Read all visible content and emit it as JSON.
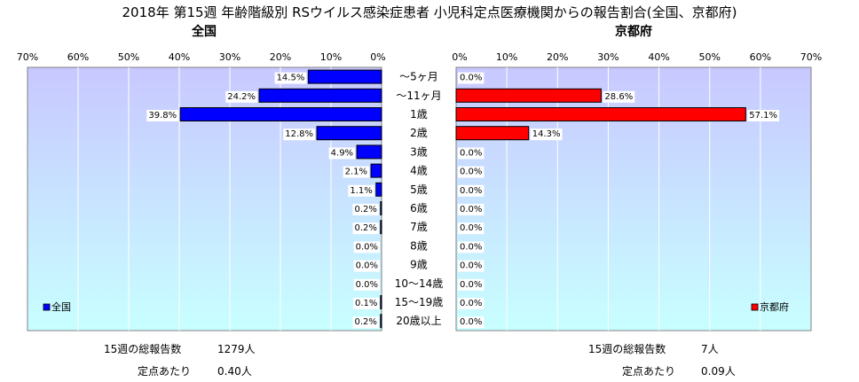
{
  "title": "2018年 第15週 年齢階級別 RSウイルス感染症患者 小児科定点医療機関からの報告割合(全国、京都府)",
  "chart_data": {
    "type": "bar",
    "orientation": "horizontal",
    "categories": [
      "～5ヶ月",
      "～11ヶ月",
      "1歳",
      "2歳",
      "3歳",
      "4歳",
      "5歳",
      "6歳",
      "7歳",
      "8歳",
      "9歳",
      "10～14歳",
      "15～19歳",
      "20歳以上"
    ],
    "xlim": [
      0,
      70
    ],
    "xticks": [
      "70%",
      "60%",
      "50%",
      "40%",
      "30%",
      "20%",
      "10%",
      "0%"
    ],
    "xticks_right": [
      "0%",
      "10%",
      "20%",
      "30%",
      "40%",
      "50%",
      "60%",
      "70%"
    ],
    "grid": true,
    "series": [
      {
        "name": "全国",
        "panel_title": "全国",
        "color": "#0000ff",
        "legend_position": "bottom-left",
        "values": [
          14.5,
          24.2,
          39.8,
          12.8,
          4.9,
          2.1,
          1.1,
          0.2,
          0.2,
          0.0,
          0.0,
          0.0,
          0.1,
          0.2
        ],
        "labels": [
          "14.5%",
          "24.2%",
          "39.8%",
          "12.8%",
          "4.9%",
          "2.1%",
          "1.1%",
          "0.2%",
          "0.2%",
          "0.0%",
          "0.0%",
          "0.0%",
          "0.1%",
          "0.2%"
        ]
      },
      {
        "name": "京都府",
        "panel_title": "京都府",
        "color": "#ff0000",
        "legend_position": "bottom-right",
        "values": [
          0.0,
          28.6,
          57.1,
          14.3,
          0.0,
          0.0,
          0.0,
          0.0,
          0.0,
          0.0,
          0.0,
          0.0,
          0.0,
          0.0
        ],
        "labels": [
          "0.0%",
          "28.6%",
          "57.1%",
          "14.3%",
          "0.0%",
          "0.0%",
          "0.0%",
          "0.0%",
          "0.0%",
          "0.0%",
          "0.0%",
          "0.0%",
          "0.0%",
          "0.0%"
        ]
      }
    ],
    "background_gradient": [
      "#c8c8ff",
      "#c8ffff"
    ]
  },
  "footer": {
    "national": {
      "total_label": "15週の総報告数",
      "total_value": "1279人",
      "per_label": "定点あたり",
      "per_value": "0.40人"
    },
    "kyoto": {
      "total_label": "15週の総報告数",
      "total_value": "7人",
      "per_label": "定点あたり",
      "per_value": "0.09人"
    }
  }
}
